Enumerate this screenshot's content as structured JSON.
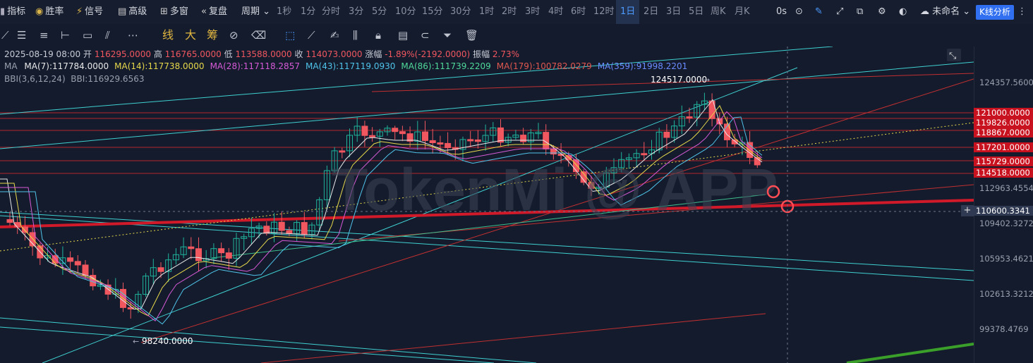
{
  "toolbar": {
    "indicators": "指标",
    "win_rate": "胜率",
    "signal": "信号",
    "advanced": "高级",
    "multi_window": "多窗",
    "replay": "复盘",
    "period": "周期",
    "intervals": [
      "1秒",
      "1分",
      "分时",
      "3分",
      "5分",
      "10分",
      "15分",
      "30分",
      "1时",
      "2时",
      "3时",
      "4时",
      "6时",
      "12时",
      "1日",
      "2日",
      "3日",
      "5日",
      "周K",
      "月K"
    ],
    "selected_interval": "1日",
    "countdown": "0s",
    "layout_name": "未命名",
    "kline_analysis": "K线分析"
  },
  "drawbar": {
    "tools": [
      "线",
      "大",
      "筹"
    ]
  },
  "ohlc": {
    "date": "2025-08-19 08:00",
    "open_label": "开",
    "open": "116295.0000",
    "high_label": "高",
    "high": "116765.0000",
    "low_label": "低",
    "low": "113588.0000",
    "close_label": "收",
    "close": "114073.0000",
    "change_label": "涨幅",
    "change": "-1.89%(-2192.0000)",
    "amp_label": "振幅",
    "amplitude": "2.73%"
  },
  "ma": {
    "label": "MA",
    "items": [
      {
        "text": "MA(7):117784.0000",
        "color": "#e8e8e8"
      },
      {
        "text": "MA(14):117738.0000",
        "color": "#e6d84a"
      },
      {
        "text": "MA(28):117118.2857",
        "color": "#d65ad6"
      },
      {
        "text": "MA(43):117119.0930",
        "color": "#4fc3e8"
      },
      {
        "text": "MA(86):111739.2209",
        "color": "#4fd89a"
      },
      {
        "text": "MA(179):100782.0279",
        "color": "#e0574f"
      },
      {
        "text": "MA(359):91998.2201",
        "color": "#6a8bff"
      }
    ]
  },
  "bbi": {
    "label": "BBI(3,6,12,24)",
    "value": "BBI:116929.6563"
  },
  "watermark": "TokenMi @ APP",
  "annotations": {
    "high": "124517.0000",
    "low": "98240.0000"
  },
  "price_axis": {
    "labels": [
      "124357.5600",
      "112963.4554",
      "109402.3272",
      "105953.4621",
      "102613.3212",
      "99378.4769"
    ],
    "tags": [
      "121000.0000",
      "119826.0000",
      "118867.0000",
      "117201.0000",
      "115729.0000",
      "114518.0000"
    ],
    "crosshair": "110600.3341"
  },
  "chart_data": {
    "type": "candlestick",
    "last_candle": {
      "date": "2025-08-19",
      "open": 116295,
      "high": 116765,
      "low": 113588,
      "close": 114073
    },
    "swing_high": 124517,
    "swing_low": 98240,
    "horizontal_levels": [
      121000,
      119826,
      118867,
      117201,
      115729,
      114518
    ],
    "crosshair_price": 110600.3341,
    "colors": {
      "up": "#1fb39c",
      "down": "#f0575f"
    }
  }
}
